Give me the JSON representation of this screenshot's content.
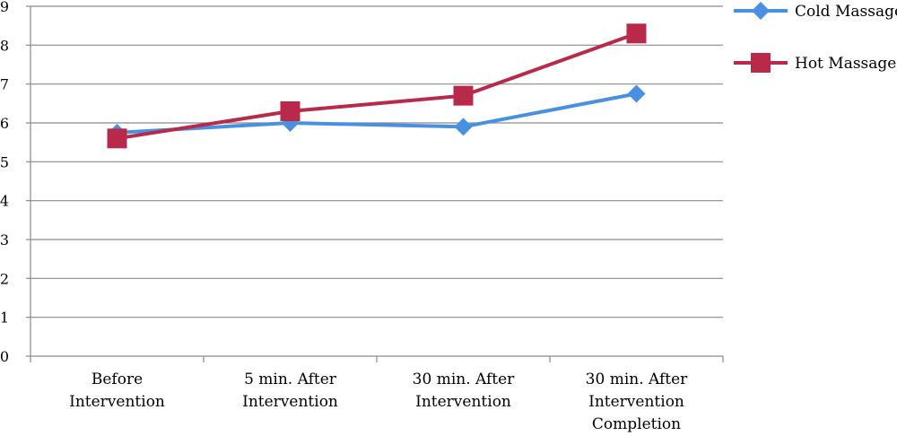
{
  "chart_data": {
    "type": "line",
    "categories": [
      [
        "Before",
        "Intervention"
      ],
      [
        "5 min. After",
        "Intervention"
      ],
      [
        "30 min. After",
        "Intervention"
      ],
      [
        "30 min. After",
        "Intervention",
        "Completion"
      ]
    ],
    "ylim": [
      0,
      9
    ],
    "yticks": [
      0,
      1,
      2,
      3,
      4,
      5,
      6,
      7,
      8,
      9
    ],
    "grid": true,
    "legend_position": "right",
    "series": [
      {
        "name": "Cold Massage",
        "values": [
          5.75,
          6.0,
          5.9,
          6.75
        ],
        "color": "#4a90e2",
        "marker": "diamond"
      },
      {
        "name": "Hot Massage",
        "values": [
          5.6,
          6.3,
          6.7,
          8.3
        ],
        "color": "#b8294a",
        "marker": "square"
      }
    ]
  }
}
